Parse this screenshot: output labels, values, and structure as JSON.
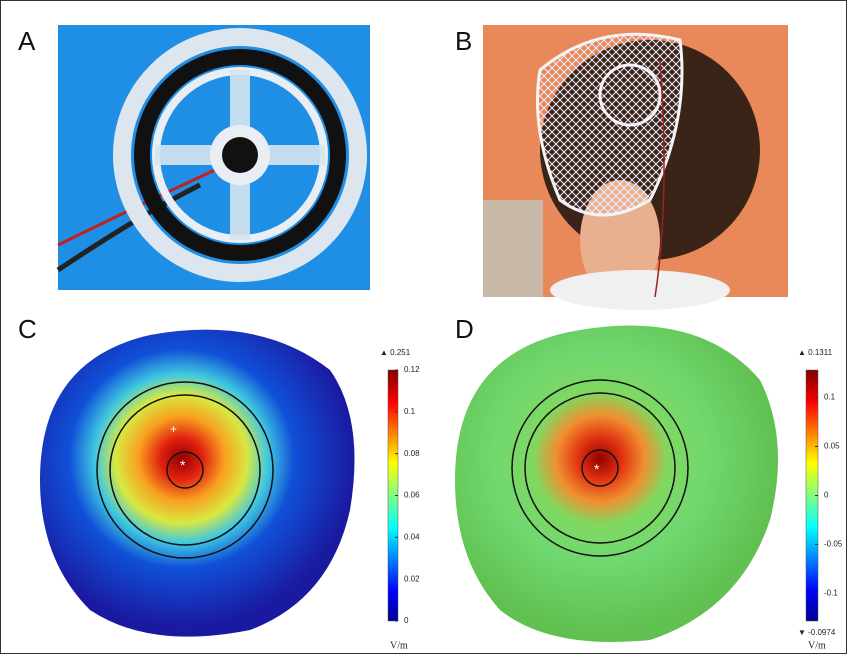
{
  "panels": [
    {
      "label": "A"
    },
    {
      "label": "B"
    },
    {
      "label": "C",
      "colorbar": {
        "max_label": "▲ 0.251",
        "lim": [
          0,
          0.12
        ],
        "ticks": [
          0.12,
          0.1,
          0.08,
          0.06,
          0.04,
          0.02,
          0
        ],
        "unit": "V/m"
      }
    },
    {
      "label": "D",
      "colorbar": {
        "max_label": "▲ 0.1311",
        "min_label": "▼ -0.0974",
        "lim": [
          -0.128,
          0.128
        ],
        "ticks": [
          0.1,
          0.05,
          0,
          -0.05,
          -0.1
        ],
        "unit": "V/m"
      }
    }
  ]
}
